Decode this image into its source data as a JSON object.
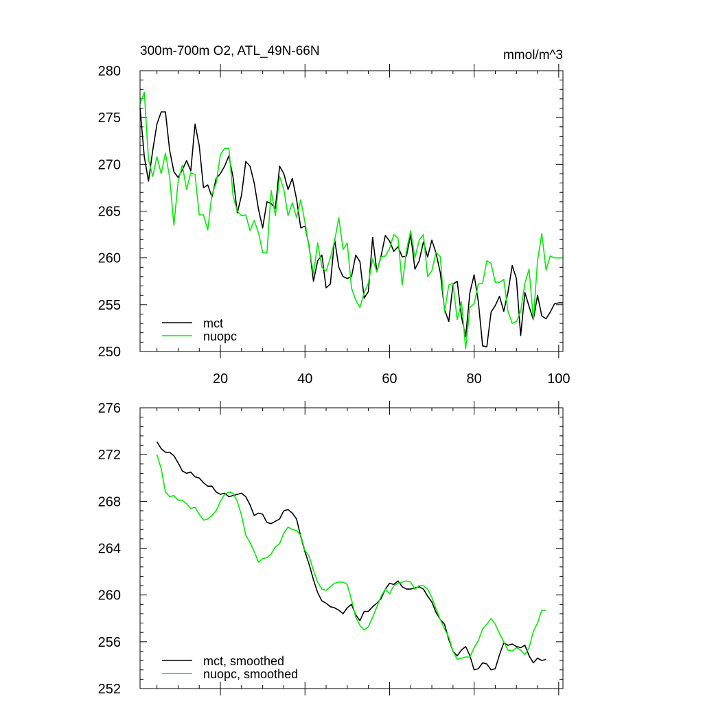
{
  "chart_data": [
    {
      "type": "line",
      "title": "300m-700m O2, ATL_49N-66N",
      "units": "mmol/m^3",
      "xlim": [
        1,
        101
      ],
      "ylim": [
        250,
        280
      ],
      "xticks": [
        20,
        40,
        60,
        80,
        100
      ],
      "yticks": [
        250,
        255,
        260,
        265,
        270,
        275,
        280
      ],
      "xtick_labels": [
        "20",
        "40",
        "60",
        "80",
        "100"
      ],
      "ytick_labels": [
        "250",
        "255",
        "260",
        "265",
        "270",
        "275",
        "280"
      ],
      "legend_position": "bottom-left",
      "series": [
        {
          "name": "mct",
          "color": "#000000",
          "x": [
            1,
            2,
            3,
            4,
            5,
            6,
            7,
            8,
            9,
            10,
            11,
            12,
            13,
            14,
            15,
            16,
            17,
            18,
            19,
            20,
            21,
            22,
            23,
            24,
            25,
            26,
            27,
            28,
            29,
            30,
            31,
            32,
            33,
            34,
            35,
            36,
            37,
            38,
            39,
            40,
            41,
            42,
            43,
            44,
            45,
            46,
            47,
            48,
            49,
            50,
            51,
            52,
            53,
            54,
            55,
            56,
            57,
            58,
            59,
            60,
            61,
            62,
            63,
            64,
            65,
            66,
            67,
            68,
            69,
            70,
            71,
            72,
            73,
            74,
            75,
            76,
            77,
            78,
            79,
            80,
            81,
            82,
            83,
            84,
            85,
            86,
            87,
            88,
            89,
            90,
            91,
            92,
            93,
            94,
            95,
            96,
            97,
            98,
            99,
            100,
            101
          ],
          "values": [
            276.0,
            270.8,
            268.2,
            271.5,
            274.3,
            275.6,
            275.6,
            271.5,
            269.2,
            268.6,
            269.4,
            270.4,
            269.3,
            274.3,
            272.0,
            267.5,
            267.8,
            266.5,
            268.5,
            269.0,
            269.8,
            270.9,
            268.6,
            264.8,
            266.7,
            270.3,
            269.8,
            268.0,
            265.2,
            263.2,
            266.0,
            265.8,
            265.3,
            269.8,
            269.0,
            267.3,
            268.5,
            266.3,
            263.2,
            263.4,
            261.2,
            257.5,
            259.7,
            260.3,
            256.8,
            257.2,
            262.0,
            259.0,
            258.0,
            257.8,
            258.0,
            260.3,
            259.6,
            255.7,
            256.4,
            262.2,
            258.5,
            260.2,
            262.4,
            261.8,
            260.7,
            261.2,
            260.1,
            260.2,
            262.5,
            258.8,
            259.7,
            261.7,
            260.1,
            261.9,
            260.5,
            258.4,
            254.5,
            253.2,
            257.2,
            257.5,
            253.7,
            251.6,
            256.3,
            258.2,
            255.3,
            250.6,
            250.5,
            254.2,
            254.9,
            255.9,
            254.3,
            256.3,
            259.2,
            257.8,
            251.7,
            256.3,
            254.8,
            253.4,
            256.0,
            253.8,
            253.5,
            254.2,
            255.1,
            255.2,
            255.2
          ]
        },
        {
          "name": "nuopc",
          "color": "#00ee00",
          "x": [
            1,
            2,
            3,
            4,
            5,
            6,
            7,
            8,
            9,
            10,
            11,
            12,
            13,
            14,
            15,
            16,
            17,
            18,
            19,
            20,
            21,
            22,
            23,
            24,
            25,
            26,
            27,
            28,
            29,
            30,
            31,
            32,
            33,
            34,
            35,
            36,
            37,
            38,
            39,
            40,
            41,
            42,
            43,
            44,
            45,
            46,
            47,
            48,
            49,
            50,
            51,
            52,
            53,
            54,
            55,
            56,
            57,
            58,
            59,
            60,
            61,
            62,
            63,
            64,
            65,
            66,
            67,
            68,
            69,
            70,
            71,
            72,
            73,
            74,
            75,
            76,
            77,
            78,
            79,
            80,
            81,
            82,
            83,
            84,
            85,
            86,
            87,
            88,
            89,
            90,
            91,
            92,
            93,
            94,
            95,
            96,
            97,
            98,
            99,
            100,
            101
          ],
          "values": [
            276.5,
            277.7,
            270.5,
            268.7,
            270.8,
            269.0,
            271.2,
            268.6,
            263.5,
            268.1,
            269.9,
            267.3,
            269.1,
            268.9,
            264.6,
            264.6,
            263.0,
            266.8,
            268.0,
            271.0,
            271.7,
            271.7,
            266.6,
            265.0,
            264.5,
            264.6,
            262.9,
            264.0,
            262.7,
            260.6,
            260.5,
            267.2,
            264.5,
            268.7,
            267.3,
            264.5,
            265.9,
            264.3,
            266.2,
            263.8,
            261.0,
            258.3,
            261.6,
            259.0,
            258.6,
            260.0,
            261.8,
            264.3,
            260.9,
            261.6,
            256.8,
            255.5,
            254.7,
            256.3,
            257.3,
            259.9,
            258.5,
            260.1,
            260.2,
            261.0,
            262.5,
            262.1,
            257.1,
            260.8,
            262.9,
            260.0,
            261.9,
            262.5,
            258.0,
            258.6,
            260.6,
            260.1,
            254.2,
            257.1,
            257.3,
            253.4,
            255.3,
            250.3,
            254.7,
            255.1,
            257.2,
            257.3,
            259.7,
            259.4,
            257.4,
            257.4,
            257.7,
            254.3,
            253.0,
            253.2,
            254.3,
            257.3,
            258.8,
            253.4,
            259.7,
            262.6,
            258.7,
            260.2,
            260.0,
            260.0,
            260.0
          ]
        }
      ]
    },
    {
      "type": "line",
      "title": "",
      "xlim": [
        1,
        101
      ],
      "ylim": [
        252,
        276
      ],
      "xticks": [
        20,
        40,
        60,
        80,
        100
      ],
      "yticks": [
        252,
        256,
        260,
        264,
        268,
        272,
        276
      ],
      "ytick_labels": [
        "252",
        "256",
        "260",
        "264",
        "268",
        "272",
        "276"
      ],
      "legend_position": "bottom-left",
      "series": [
        {
          "name": "mct, smoothed",
          "color": "#000000",
          "x": [
            5,
            6,
            7,
            8,
            9,
            10,
            11,
            12,
            13,
            14,
            15,
            16,
            17,
            18,
            19,
            20,
            21,
            22,
            23,
            24,
            25,
            26,
            27,
            28,
            29,
            30,
            31,
            32,
            33,
            34,
            35,
            36,
            37,
            38,
            39,
            40,
            41,
            42,
            43,
            44,
            45,
            46,
            47,
            48,
            49,
            50,
            51,
            52,
            53,
            54,
            55,
            56,
            57,
            58,
            59,
            60,
            61,
            62,
            63,
            64,
            65,
            66,
            67,
            68,
            69,
            70,
            71,
            72,
            73,
            74,
            75,
            76,
            77,
            78,
            79,
            80,
            81,
            82,
            83,
            84,
            85,
            86,
            87,
            88,
            89,
            90,
            91,
            92,
            93,
            94,
            95,
            96,
            97
          ],
          "values": [
            273.1,
            272.5,
            272.2,
            272.2,
            271.9,
            271.3,
            270.6,
            270.4,
            270.5,
            270.1,
            270.0,
            269.6,
            269.3,
            269.3,
            268.8,
            268.6,
            268.7,
            268.4,
            268.5,
            268.6,
            268.7,
            268.4,
            267.7,
            266.8,
            267.0,
            266.9,
            266.2,
            266.1,
            266.3,
            266.5,
            267.2,
            267.3,
            267.0,
            266.5,
            265.0,
            263.7,
            262.6,
            261.3,
            260.2,
            259.5,
            259.3,
            259.0,
            258.9,
            258.7,
            258.4,
            258.9,
            259.2,
            258.3,
            257.8,
            258.6,
            258.6,
            259.0,
            259.3,
            259.7,
            260.5,
            261.0,
            260.9,
            261.2,
            260.7,
            260.5,
            260.5,
            260.6,
            260.7,
            260.5,
            259.9,
            259.4,
            258.5,
            257.9,
            257.5,
            256.2,
            255.2,
            254.8,
            255.3,
            255.6,
            254.8,
            253.6,
            253.7,
            254.2,
            254.1,
            253.6,
            253.7,
            254.9,
            255.9,
            255.7,
            255.8,
            255.6,
            255.5,
            255.7,
            254.8,
            254.2,
            254.6,
            254.4,
            254.5
          ]
        },
        {
          "name": "nuopc, smoothed",
          "color": "#00ee00",
          "x": [
            5,
            6,
            7,
            8,
            9,
            10,
            11,
            12,
            13,
            14,
            15,
            16,
            17,
            18,
            19,
            20,
            21,
            22,
            23,
            24,
            25,
            26,
            27,
            28,
            29,
            30,
            31,
            32,
            33,
            34,
            35,
            36,
            37,
            38,
            39,
            40,
            41,
            42,
            43,
            44,
            45,
            46,
            47,
            48,
            49,
            50,
            51,
            52,
            53,
            54,
            55,
            56,
            57,
            58,
            59,
            60,
            61,
            62,
            63,
            64,
            65,
            66,
            67,
            68,
            69,
            70,
            71,
            72,
            73,
            74,
            75,
            76,
            77,
            78,
            79,
            80,
            81,
            82,
            83,
            84,
            85,
            86,
            87,
            88,
            89,
            90,
            91,
            92,
            93,
            94,
            95,
            96,
            97
          ],
          "values": [
            272.0,
            270.8,
            268.8,
            268.4,
            268.5,
            268.1,
            268.1,
            267.8,
            267.4,
            267.5,
            266.9,
            266.4,
            266.5,
            266.8,
            267.2,
            268.0,
            268.6,
            268.8,
            268.7,
            268.0,
            266.8,
            265.1,
            264.5,
            263.7,
            262.8,
            263.1,
            263.2,
            263.5,
            264.1,
            264.4,
            265.3,
            265.8,
            265.6,
            265.5,
            265.1,
            263.8,
            263.3,
            262.1,
            261.1,
            260.5,
            260.4,
            260.7,
            261.0,
            261.1,
            261.1,
            260.9,
            259.6,
            258.1,
            257.4,
            257.0,
            257.3,
            258.1,
            259.0,
            259.9,
            260.5,
            260.1,
            260.8,
            261.0,
            261.1,
            261.2,
            261.1,
            260.5,
            260.8,
            260.8,
            260.5,
            259.8,
            258.8,
            257.9,
            257.1,
            256.4,
            255.2,
            254.5,
            254.6,
            254.7,
            254.7,
            255.5,
            256.1,
            257.1,
            257.5,
            258.0,
            257.5,
            256.7,
            256.0,
            255.3,
            255.2,
            255.5,
            255.3,
            254.9,
            255.5,
            256.9,
            257.6,
            258.7,
            258.7
          ]
        }
      ]
    }
  ]
}
